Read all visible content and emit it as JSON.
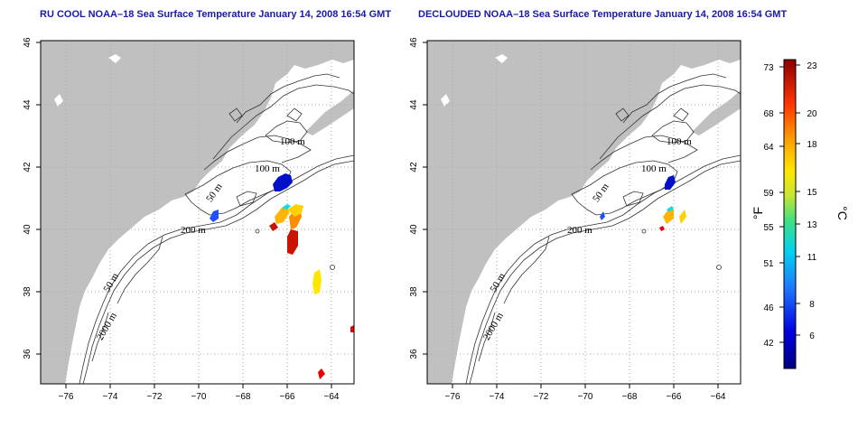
{
  "panels": [
    {
      "title": "RU COOL NOAA–18 Sea Surface Temperature January 14, 2008 16:54 GMT",
      "contour_labels": [
        "100 m",
        "100 m",
        "50 m",
        "200 m",
        "50 m",
        "2000 m"
      ]
    },
    {
      "title": "DECLOUDED NOAA–18 Sea Surface Temperature January 14, 2008 16:54 GMT",
      "contour_labels": [
        "100 m",
        "100 m",
        "50 m",
        "200 m",
        "50 m",
        "2000 m"
      ]
    }
  ],
  "axes": {
    "lon_ticks": [
      "−76",
      "−74",
      "−72",
      "−70",
      "−68",
      "−66",
      "−64"
    ],
    "lat_ticks": [
      "36",
      "38",
      "40",
      "42",
      "44",
      "46"
    ]
  },
  "colorbar": {
    "fahrenheit_label": "°F",
    "celsius_label": "°C",
    "fahrenheit_ticks": [
      "73",
      "68",
      "64",
      "59",
      "55",
      "51",
      "46",
      "42"
    ],
    "celsius_ticks": [
      "23",
      "20",
      "18",
      "15",
      "13",
      "11",
      "8",
      "6"
    ]
  },
  "colors": {
    "land": "#c0c0c0",
    "ocean": "#ffffff",
    "title": "#1a1aa6",
    "grid": "#aaaaaa"
  }
}
